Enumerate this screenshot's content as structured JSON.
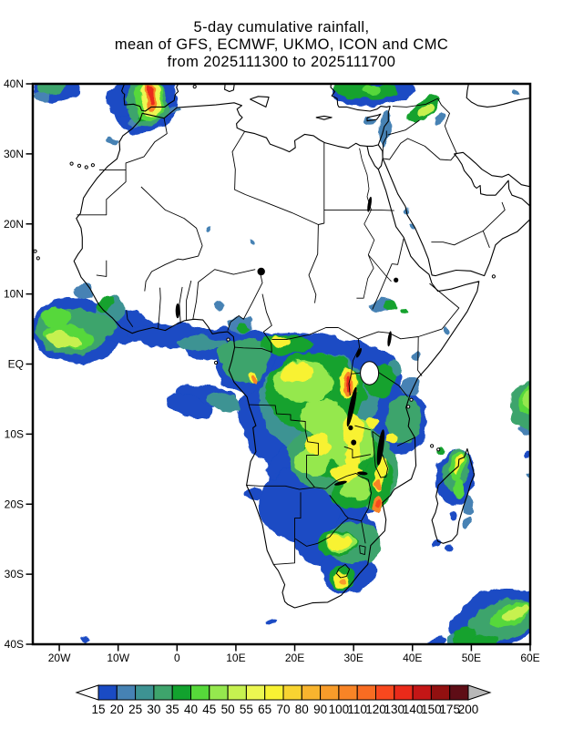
{
  "title": {
    "line1": "5-day cumulative rainfall,",
    "line2": "mean of GFS, ECMWF, UKMO, ICON and CMC",
    "line3": "from 2025111300 to 2025111700"
  },
  "chart_data": {
    "type": "heatmap",
    "title": "5-day cumulative rainfall, mean of GFS, ECMWF, UKMO, ICON and CMC from 2025111300 to 2025111700",
    "models": [
      "GFS",
      "ECMWF",
      "UKMO",
      "ICON",
      "CMC"
    ],
    "period": {
      "start": "2025111300",
      "end": "2025111700"
    },
    "projection": {
      "lon_range": [
        -24.5,
        60
      ],
      "lat_range": [
        -40,
        40
      ]
    },
    "lat_axis": {
      "labels": [
        "40N",
        "30N",
        "20N",
        "10N",
        "EQ",
        "10S",
        "20S",
        "30S",
        "40S"
      ],
      "values": [
        40,
        30,
        20,
        10,
        0,
        -10,
        -20,
        -30,
        -40
      ]
    },
    "lon_axis": {
      "labels": [
        "20W",
        "10W",
        "0",
        "10E",
        "20E",
        "30E",
        "40E",
        "50E",
        "60E"
      ],
      "values": [
        -20,
        -10,
        0,
        10,
        20,
        30,
        40,
        50,
        60
      ]
    },
    "colorbar": {
      "levels": [
        "15",
        "20",
        "25",
        "30",
        "35",
        "40",
        "45",
        "50",
        "55",
        "65",
        "70",
        "80",
        "90",
        "100",
        "110",
        "120",
        "130",
        "140",
        "150",
        "175",
        "200"
      ],
      "colors": [
        "#1a4bc4",
        "#4682b4",
        "#3d9393",
        "#3ea46c",
        "#12a22e",
        "#56d83a",
        "#95e84e",
        "#c6f150",
        "#ecf751",
        "#f8f233",
        "#f8d431",
        "#f8b42e",
        "#f89c2a",
        "#f88426",
        "#f86c22",
        "#f8481e",
        "#ea2a1a",
        "#c41616",
        "#921010",
        "#5e0d16"
      ],
      "under_arrow_color": "#ffffff",
      "over_arrow_color": "#b8b8b8"
    },
    "rain_cells_fields": [
      "lon",
      "lat",
      "rx_deg",
      "ry_deg",
      "rotation_deg",
      "level_index"
    ],
    "rain_cells": [
      [
        -5.5,
        36.9,
        5.6,
        3.9,
        -15,
        0
      ],
      [
        -9.3,
        37.8,
        2.6,
        2.6,
        0,
        0
      ],
      [
        -3.2,
        39.6,
        3.4,
        1.7,
        0,
        0
      ],
      [
        -20.5,
        39.3,
        4,
        1.9,
        0,
        0
      ],
      [
        33.5,
        38.8,
        6.8,
        2.0,
        -5,
        0
      ],
      [
        -17,
        4.8,
        7.8,
        4.6,
        5,
        0
      ],
      [
        -9,
        5.3,
        5.5,
        2.4,
        8,
        0
      ],
      [
        -1,
        4.1,
        7.5,
        1.7,
        2,
        0
      ],
      [
        6.5,
        2.8,
        5,
        2.2,
        -10,
        0
      ],
      [
        10.5,
        -0.5,
        3.6,
        3.2,
        0,
        0
      ],
      [
        5,
        -4.5,
        5,
        1.6,
        10,
        0
      ],
      [
        2,
        -6,
        4,
        1.5,
        20,
        0
      ],
      [
        24,
        -7,
        13.5,
        9.8,
        0,
        0
      ],
      [
        29,
        -2.5,
        9,
        6,
        0,
        0
      ],
      [
        20,
        1.8,
        9.5,
        3,
        0,
        0
      ],
      [
        11.5,
        0.5,
        5,
        4.5,
        0,
        0
      ],
      [
        26,
        -16,
        10.5,
        6.5,
        0,
        0
      ],
      [
        37,
        -8,
        5.5,
        5,
        0,
        0
      ],
      [
        27,
        -24.5,
        7,
        5,
        0,
        0
      ],
      [
        29,
        -29.5,
        4.5,
        3.5,
        0,
        0
      ],
      [
        21,
        -20,
        7,
        5.5,
        0,
        0
      ],
      [
        13,
        -18.5,
        1.6,
        1,
        0,
        0
      ],
      [
        47.3,
        -16,
        3.2,
        4.2,
        10,
        0
      ],
      [
        54,
        -36.5,
        8,
        4.2,
        -22,
        0
      ],
      [
        44,
        -39.9,
        1.8,
        0.9,
        0,
        0
      ],
      [
        -15.3,
        -39.6,
        0.6,
        0.4,
        0,
        0
      ],
      [
        16,
        -36.8,
        0.7,
        0.4,
        0,
        0
      ],
      [
        44,
        -25.5,
        0.8,
        0.5,
        0,
        0
      ],
      [
        46.2,
        -26.5,
        0.6,
        0.4,
        0,
        0
      ],
      [
        47,
        -21.5,
        0.6,
        0.5,
        0,
        0
      ],
      [
        59.7,
        -12.8,
        0.7,
        0.5,
        0,
        0
      ],
      [
        -11.2,
        32,
        0.9,
        0.5,
        0,
        1
      ],
      [
        -6.8,
        34.6,
        1.5,
        0.7,
        -20,
        1
      ],
      [
        -1,
        36.2,
        1.6,
        0.6,
        0,
        1
      ],
      [
        -22.8,
        38.2,
        1.3,
        0.8,
        0,
        1
      ],
      [
        44.5,
        34.9,
        1.3,
        0.6,
        -40,
        1
      ],
      [
        35.4,
        33.6,
        0.9,
        2.6,
        3,
        1
      ],
      [
        32.9,
        34.9,
        1.0,
        0.6,
        0,
        1
      ],
      [
        57.6,
        38.6,
        0.55,
        0.45,
        0,
        1
      ],
      [
        38.8,
        21.9,
        0.5,
        0.4,
        0,
        1
      ],
      [
        39.6,
        20,
        0.45,
        0.35,
        0,
        1
      ],
      [
        10.8,
        5.6,
        2.2,
        1.5,
        0,
        1
      ],
      [
        7.3,
        8.3,
        1,
        0.7,
        0,
        1
      ],
      [
        -16,
        10.3,
        1.6,
        1,
        0,
        1
      ],
      [
        34.8,
        8.4,
        2.3,
        1,
        0,
        1
      ],
      [
        40.8,
        1.2,
        0.8,
        0.6,
        0,
        1
      ],
      [
        45.8,
        4.9,
        0.6,
        0.5,
        0,
        1
      ],
      [
        39.8,
        -3.2,
        1.7,
        1.2,
        0,
        1
      ],
      [
        5.5,
        19.8,
        0.5,
        0.4,
        0,
        1
      ],
      [
        12.8,
        17.5,
        0.5,
        0.35,
        0,
        1
      ],
      [
        49.5,
        -20.3,
        0.9,
        1.5,
        0,
        1
      ],
      [
        48.9,
        -22.8,
        0.6,
        0.9,
        0,
        1
      ],
      [
        58.9,
        -9.5,
        1.2,
        0.8,
        0,
        1
      ],
      [
        59.9,
        -16,
        0.5,
        0.4,
        0,
        1
      ],
      [
        -11.3,
        7.6,
        2.4,
        1.9,
        0,
        2
      ],
      [
        4,
        3,
        4,
        1.1,
        0,
        2
      ],
      [
        8,
        -5.5,
        3,
        1.3,
        15,
        2
      ],
      [
        24,
        -5.5,
        10,
        7,
        0,
        2
      ],
      [
        36.8,
        -0.6,
        1.2,
        0.9,
        0,
        2
      ],
      [
        47.5,
        -39.6,
        1.6,
        1,
        0,
        2
      ],
      [
        -5,
        37.3,
        3.6,
        3.3,
        -15,
        3
      ],
      [
        -21.5,
        39.6,
        2.4,
        1,
        0,
        3
      ],
      [
        -18,
        4.6,
        6,
        3.2,
        5,
        3
      ],
      [
        -13.5,
        5.6,
        3,
        1.8,
        10,
        3
      ],
      [
        8.8,
        1.5,
        2,
        1.5,
        0,
        3
      ],
      [
        27.5,
        -13,
        8.5,
        5.5,
        0,
        3
      ],
      [
        12,
        0.3,
        3.8,
        3.2,
        0,
        3
      ],
      [
        33.5,
        -15.5,
        4,
        5,
        0,
        3
      ],
      [
        38.5,
        -8,
        3,
        3.5,
        0,
        3
      ],
      [
        30,
        -25.5,
        4.5,
        3,
        0,
        3
      ],
      [
        47.5,
        -15,
        2.2,
        3.2,
        10,
        3
      ],
      [
        55,
        -36.8,
        6,
        2.8,
        -22,
        3
      ],
      [
        59.5,
        -6,
        3,
        3.5,
        0,
        3
      ],
      [
        30.5,
        39.2,
        3.4,
        1.4,
        0,
        4
      ],
      [
        34.8,
        38.9,
        2.7,
        1.2,
        -10,
        4
      ],
      [
        42,
        36.4,
        3.2,
        1.3,
        -38,
        4
      ],
      [
        -12.5,
        8.6,
        1.2,
        0.9,
        0,
        4
      ],
      [
        11.4,
        5.2,
        1.2,
        0.9,
        0,
        4
      ],
      [
        23.5,
        -4,
        8.5,
        5.5,
        0,
        4
      ],
      [
        28,
        -12.5,
        6.5,
        4.2,
        0,
        4
      ],
      [
        18.5,
        2.8,
        4.5,
        1.7,
        0,
        4
      ],
      [
        34,
        -17,
        2.6,
        3.6,
        0,
        4
      ],
      [
        29.5,
        -18.5,
        3.2,
        2.2,
        0,
        4
      ],
      [
        27.5,
        -25.5,
        3.5,
        1.8,
        0,
        4
      ],
      [
        28.2,
        -30.7,
        2.2,
        1.8,
        0,
        4
      ],
      [
        34.5,
        -2.5,
        2.5,
        2.5,
        0,
        4
      ],
      [
        36.3,
        8.2,
        1.2,
        0.7,
        0,
        4
      ],
      [
        38.6,
        7.4,
        0.8,
        0.5,
        0,
        4
      ],
      [
        44.5,
        -12.3,
        0.7,
        0.5,
        0,
        4
      ],
      [
        49,
        -38.8,
        2.1,
        1.4,
        -15,
        4
      ],
      [
        52,
        -39.9,
        2.6,
        1.2,
        -10,
        4
      ],
      [
        -5.6,
        35.3,
        0.9,
        0.5,
        0,
        4
      ],
      [
        -4.7,
        37.7,
        2.7,
        3,
        -10,
        5
      ],
      [
        -18.5,
        3.9,
        4.5,
        1.7,
        8,
        5
      ],
      [
        -20.5,
        6.7,
        2.6,
        1.4,
        0,
        5
      ],
      [
        47.6,
        -14.6,
        1.4,
        2.4,
        12,
        5
      ],
      [
        47.9,
        -17.9,
        0.8,
        1.4,
        0,
        5
      ],
      [
        56.5,
        -35.8,
        3.6,
        1.5,
        -24,
        5
      ],
      [
        59.8,
        -5.2,
        1.8,
        2.2,
        0,
        5
      ],
      [
        33,
        39.4,
        1.6,
        0.8,
        0,
        5
      ],
      [
        21.5,
        -2.5,
        5,
        3,
        0,
        6
      ],
      [
        29,
        -11,
        4.6,
        3.6,
        0,
        6
      ],
      [
        25,
        -7.5,
        4,
        2.6,
        0,
        6
      ],
      [
        23,
        -13.8,
        3,
        2,
        0,
        6
      ],
      [
        30.5,
        -17.8,
        2.4,
        1.6,
        0,
        6
      ],
      [
        28,
        -25.4,
        2.8,
        1.4,
        0,
        6
      ],
      [
        60,
        -4.8,
        1.2,
        1.5,
        0,
        6
      ],
      [
        -19.5,
        3.5,
        3,
        1.1,
        8,
        7
      ],
      [
        42.3,
        36.2,
        1.8,
        0.7,
        -38,
        7
      ],
      [
        57.4,
        -35.5,
        2.4,
        0.9,
        -24,
        7
      ],
      [
        -4.4,
        37.9,
        1.9,
        2.6,
        -10,
        8
      ],
      [
        20.5,
        -1.2,
        2.6,
        1.5,
        0,
        9
      ],
      [
        17.6,
        3.4,
        1.5,
        0.9,
        0,
        9
      ],
      [
        24,
        -11.5,
        2.2,
        1.6,
        0,
        9
      ],
      [
        29.8,
        -9.8,
        1.8,
        2.6,
        0,
        9
      ],
      [
        28.8,
        -15.6,
        2.6,
        1.4,
        0,
        9
      ],
      [
        30,
        -12.5,
        1.4,
        3.2,
        0,
        9
      ],
      [
        34.4,
        -15.8,
        1,
        2.6,
        8,
        9
      ],
      [
        27.7,
        -25.4,
        2.3,
        1.1,
        0,
        9
      ],
      [
        33.3,
        -8.4,
        1.3,
        0.9,
        0,
        9
      ],
      [
        36.4,
        -10.6,
        1,
        0.8,
        0,
        9
      ],
      [
        12.9,
        -2,
        1,
        0.8,
        0,
        9
      ],
      [
        29.2,
        -2.6,
        1.6,
        2.4,
        0,
        9
      ],
      [
        47.8,
        -14.3,
        0.6,
        1.6,
        15,
        9
      ],
      [
        28,
        -31,
        1.4,
        1.2,
        0,
        9
      ],
      [
        28.2,
        -31,
        0.6,
        0.6,
        0,
        12
      ],
      [
        29.3,
        -2.8,
        0.9,
        1.9,
        0,
        13
      ],
      [
        34.2,
        -17.1,
        0.7,
        1,
        0,
        13
      ],
      [
        33.9,
        -19.9,
        0.9,
        1.1,
        0,
        13
      ],
      [
        13.3,
        -2.3,
        0.5,
        0.6,
        0,
        13
      ],
      [
        -4.5,
        38.1,
        1.0,
        1.9,
        -8,
        13
      ],
      [
        34,
        -19.9,
        0.4,
        0.5,
        0,
        15
      ],
      [
        29.3,
        -2.9,
        0.45,
        1.2,
        0,
        16
      ],
      [
        -4.5,
        38.3,
        0.55,
        1.3,
        -8,
        16
      ]
    ]
  }
}
